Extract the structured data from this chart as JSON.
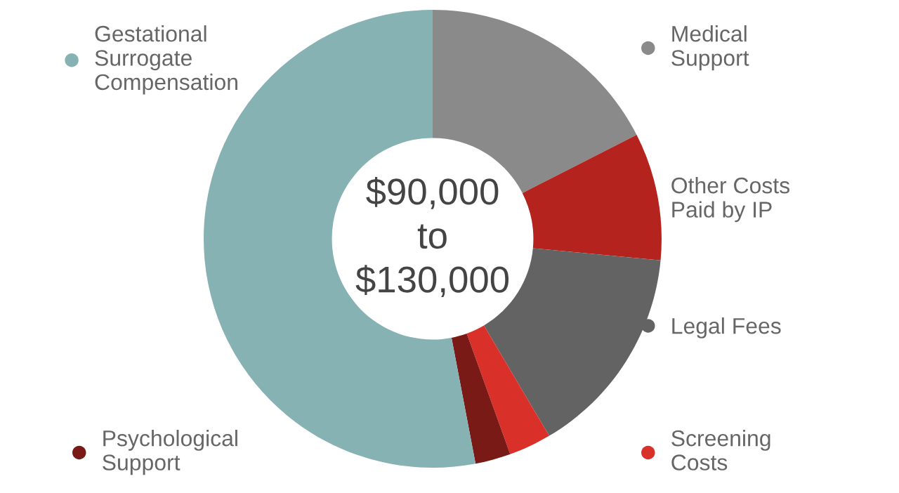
{
  "chart_data": {
    "type": "donut",
    "categories": [
      "Medical\nSupport",
      "Other Costs\nPaid by IP",
      "Legal Fees",
      "Screening\nCosts",
      "Psychological\nSupport",
      "Gestational\nSurrogate\nCompensation"
    ],
    "values": [
      17.5,
      9,
      15,
      3,
      2.5,
      53
    ],
    "colors": [
      "#8a8a8a",
      "#b5231f",
      "#636363",
      "#d9302a",
      "#7a1a17",
      "#87b2b4"
    ],
    "legend": "right",
    "annotations": [
      "$90,000\nto\n$130,000"
    ]
  }
}
